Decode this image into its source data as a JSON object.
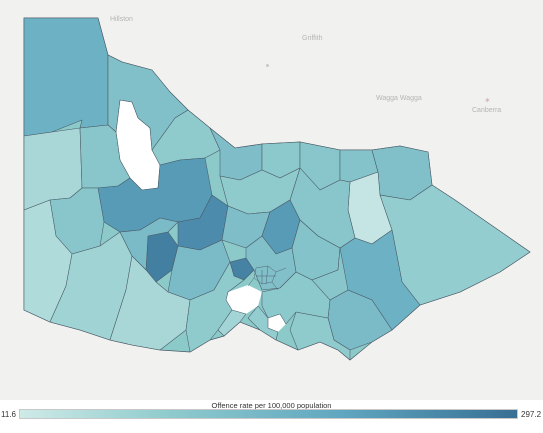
{
  "basemap": {
    "labels": [
      "Hillston",
      "Griffith",
      "Wagga Wagga",
      "Canberra"
    ],
    "colors": {
      "background": "#f1f1ef",
      "water": "#ffffff",
      "capital_marker": "#d7b0c0"
    }
  },
  "choropleth": {
    "measure": "Offence rate per 100,000 population",
    "min": "11.6",
    "max": "297.2",
    "color_low": "#cfeae7",
    "color_high": "#386f94",
    "region_levels": {
      "far_north_west": 0.55,
      "north_west_strip": 0.4,
      "central_north": 0.35,
      "mid_north_a": 0.3,
      "mid_north_b": 0.42,
      "north_east_a": 0.32,
      "north_east_b": 0.35,
      "north_east_c": 0.38,
      "north_east_d": 0.4,
      "snowy_pale": 0.05,
      "east_gippsland": 0.28,
      "gippsland_dark": 0.55,
      "gippsland_coast": 0.45,
      "south_gippsland": 0.3,
      "west_pale": 0.18,
      "south_west": 0.22,
      "western_districts": 0.35,
      "central_dark_a": 0.72,
      "central_dark_b": 0.9,
      "central_dark_c": 0.82,
      "goldfields": 0.45,
      "melbourne_west_dark": 0.88,
      "melbourne_north": 0.4,
      "geelong": 0.3,
      "bellarine": 0.2,
      "mornington": 0.28,
      "far_south_west": 0.15,
      "east_mid": 0.35
    }
  },
  "legend": {
    "title": "Offence rate per 100,000 population",
    "min_label": "11.6",
    "max_label": "297.2"
  }
}
